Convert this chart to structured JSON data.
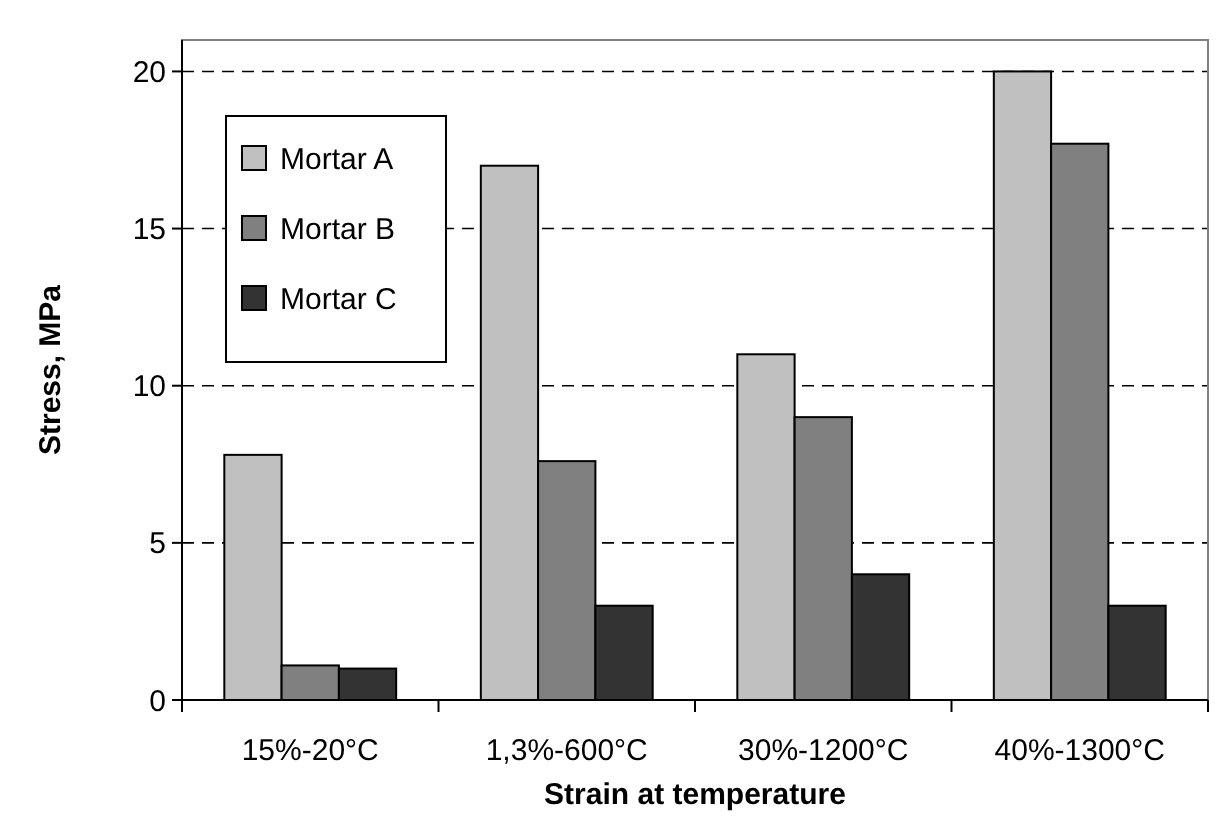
{
  "chart_data": {
    "type": "bar",
    "xlabel": "Strain at temperature",
    "ylabel": "Stress, MPa",
    "categories": [
      "15%-20°C",
      "1,3%-600°C",
      "30%-1200°C",
      "40%-1300°C"
    ],
    "series": [
      {
        "name": "Mortar A",
        "color": "#c0c0c0",
        "values": [
          7.8,
          17.0,
          11.0,
          20.0
        ]
      },
      {
        "name": "Mortar B",
        "color": "#808080",
        "values": [
          1.1,
          7.6,
          9.0,
          17.7
        ]
      },
      {
        "name": "Mortar C",
        "color": "#333333",
        "values": [
          1.0,
          3.0,
          4.0,
          3.0
        ]
      }
    ],
    "ylim": [
      0,
      21
    ],
    "yticks": [
      0,
      5,
      10,
      15,
      20
    ],
    "grid": "y",
    "legend": "top left"
  }
}
